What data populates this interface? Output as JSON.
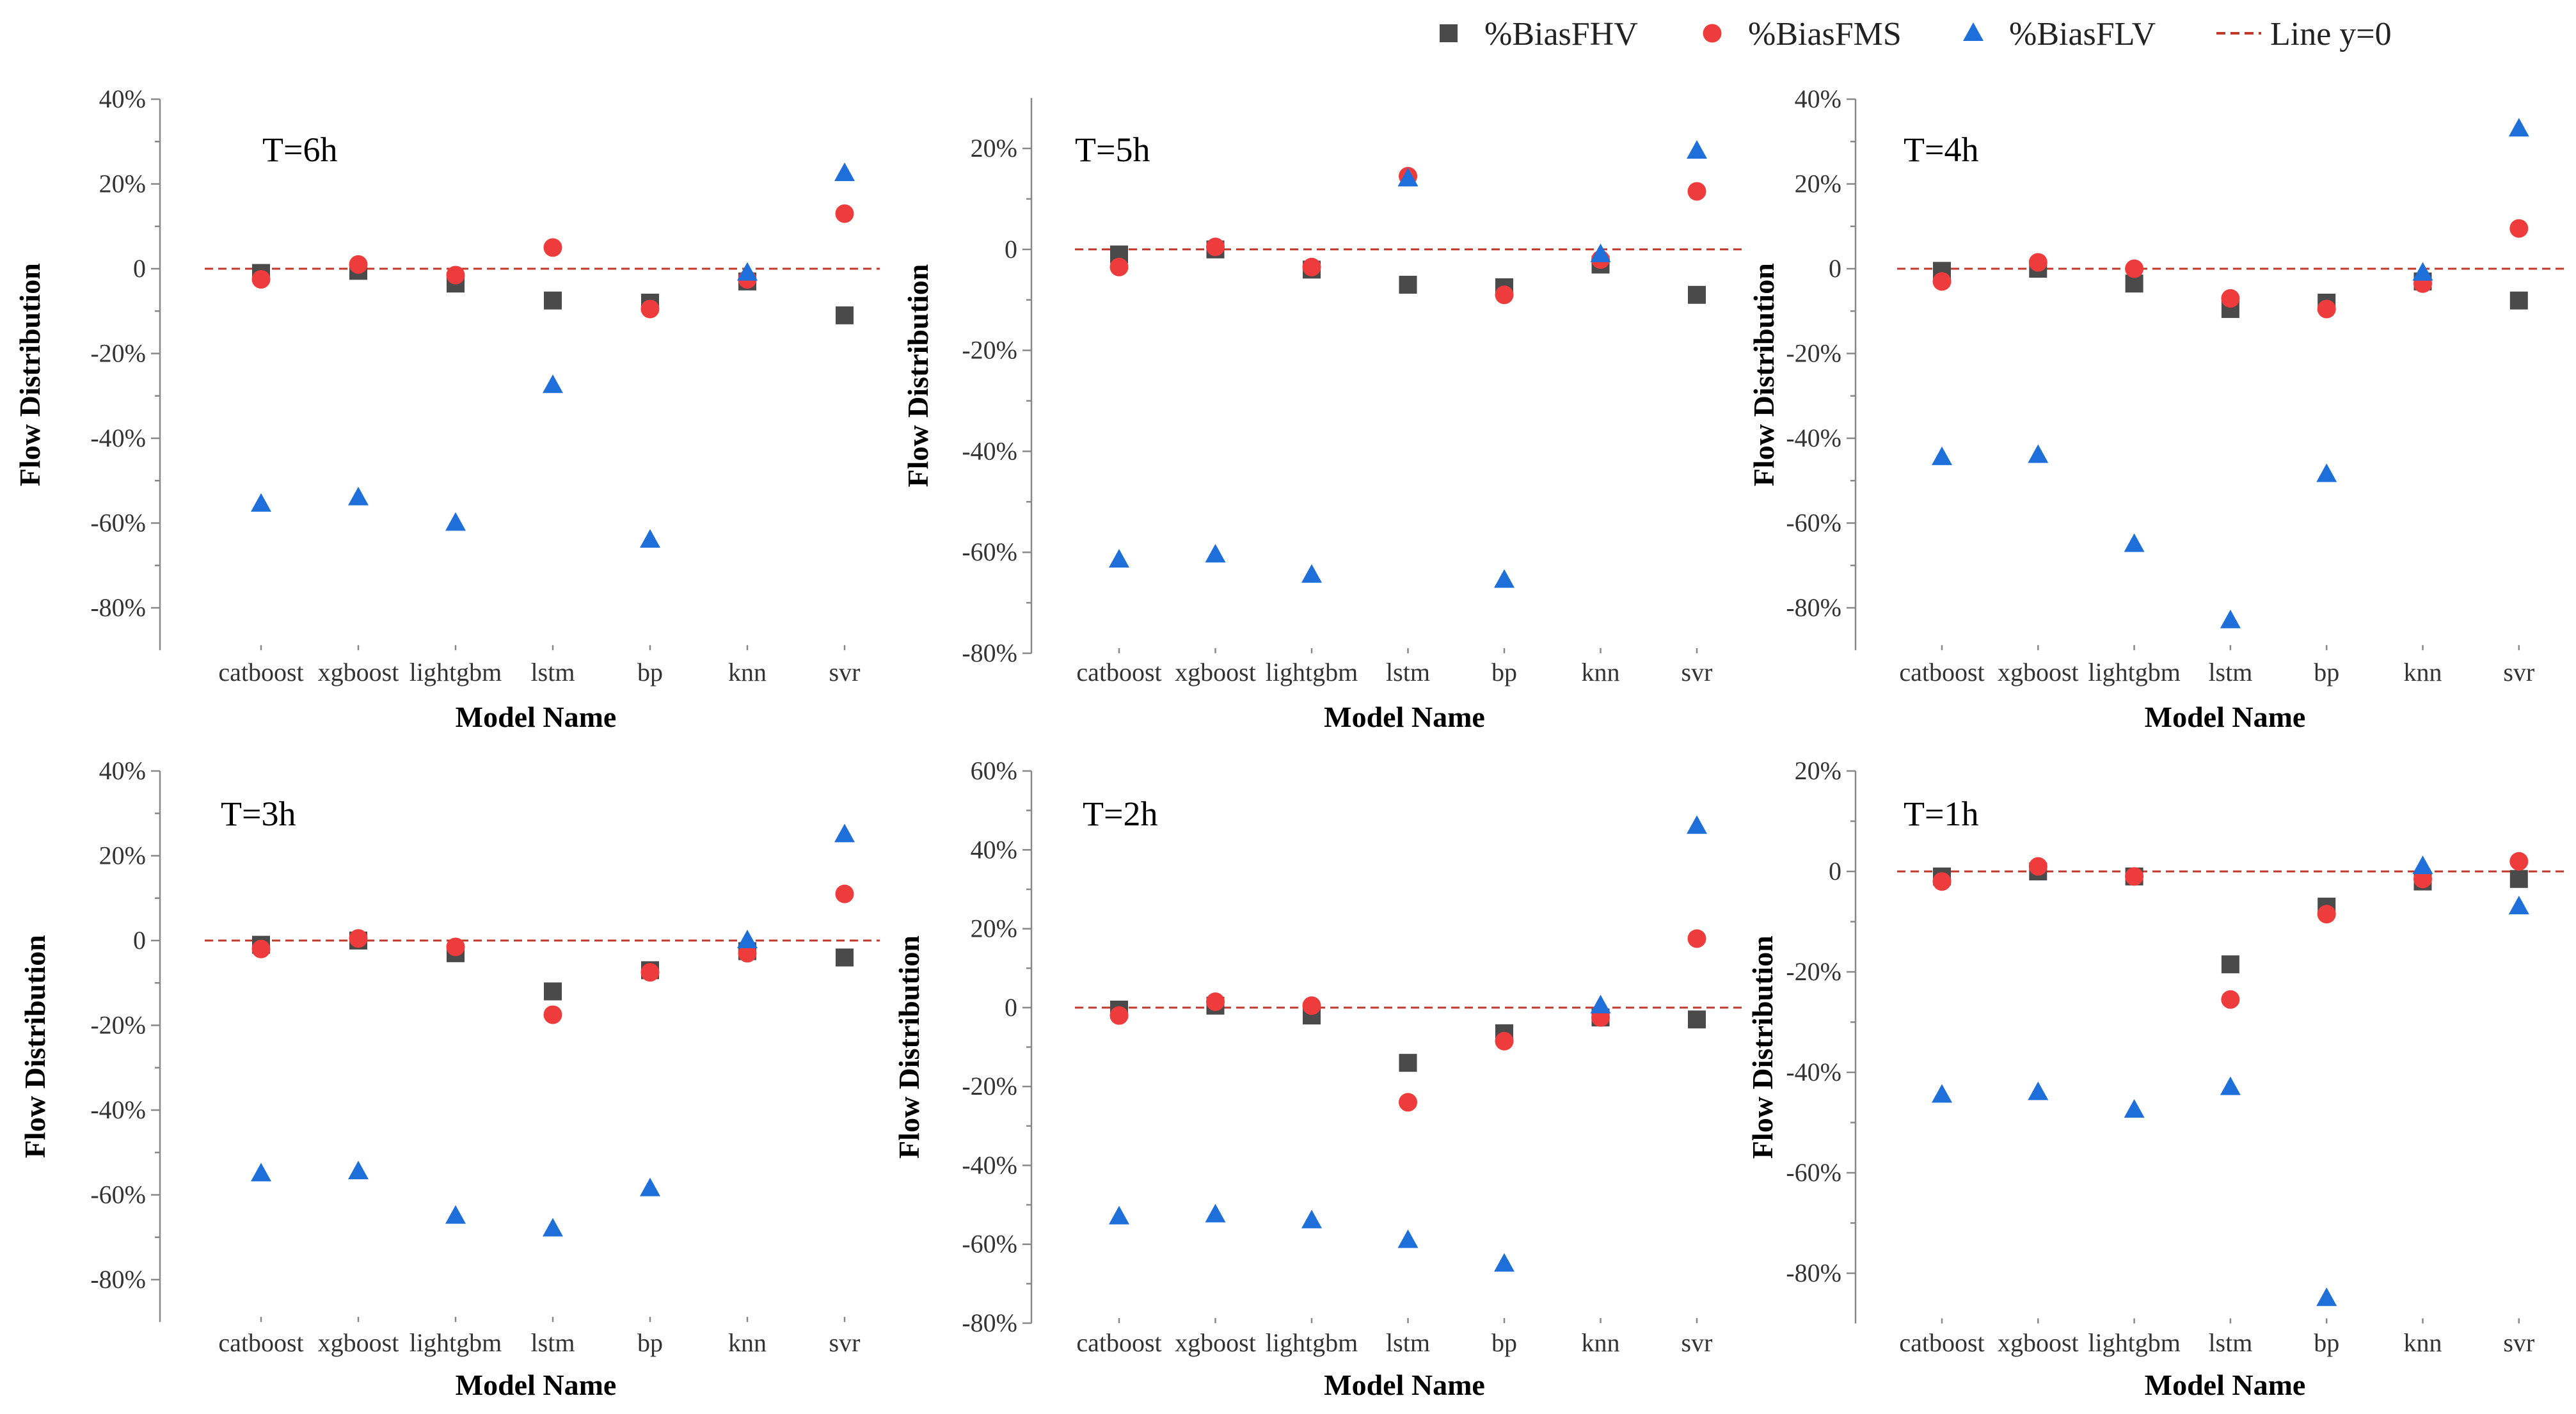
{
  "legend": {
    "items": [
      {
        "label": "%BiasFHV",
        "marker": "square",
        "color": "#4a4a4a"
      },
      {
        "label": "%BiasFMS",
        "marker": "circle",
        "color": "#ee3b3b"
      },
      {
        "label": "%BiasFLV",
        "marker": "triangle",
        "color": "#1f6fdb"
      },
      {
        "label": "Line y=0",
        "marker": "dashed-line",
        "color": "#c0392b"
      }
    ]
  },
  "chart_data": [
    {
      "type": "scatter",
      "panel_label": "T=6h",
      "xlabel": "Model Name",
      "ylabel": "Flow Distribution",
      "categories": [
        "catboost",
        "xgboost",
        "lightgbm",
        "lstm",
        "bp",
        "knn",
        "svr"
      ],
      "ylim": [
        -90,
        40
      ],
      "yticks": [
        40,
        20,
        0,
        -20,
        -40,
        -60,
        -80
      ],
      "ytick_labels": [
        "40%",
        "20%",
        "0",
        "-20%",
        "-40%",
        "-60%",
        "-80%"
      ],
      "reference_line": 0,
      "series": [
        {
          "name": "%BiasFHV",
          "values": [
            -1,
            -0.5,
            -3.5,
            -7.5,
            -8,
            -3,
            -11
          ]
        },
        {
          "name": "%BiasFMS",
          "values": [
            -2.5,
            1,
            -1.5,
            5,
            -9.5,
            -2.5,
            13
          ]
        },
        {
          "name": "%BiasFLV",
          "values": [
            -55.5,
            -54,
            -60,
            -27.5,
            -64,
            -1,
            22.5
          ]
        }
      ]
    },
    {
      "type": "scatter",
      "panel_label": "T=5h",
      "xlabel": "Model Name",
      "ylabel": "Flow Distribution",
      "categories": [
        "catboost",
        "xgboost",
        "lightgbm",
        "lstm",
        "bp",
        "knn",
        "svr"
      ],
      "ylim": [
        -80,
        30
      ],
      "yticks": [
        20,
        0,
        -20,
        -40,
        -60,
        -80
      ],
      "ytick_labels": [
        "20%",
        "0",
        "-20%",
        "-40%",
        "-60%",
        "-80%"
      ],
      "reference_line": 0,
      "series": [
        {
          "name": "%BiasFHV",
          "values": [
            -1,
            0,
            -4,
            -7,
            -7.5,
            -3,
            -9
          ]
        },
        {
          "name": "%BiasFMS",
          "values": [
            -3.5,
            0.5,
            -3.5,
            14.5,
            -9,
            -2,
            11.5
          ]
        },
        {
          "name": "%BiasFLV",
          "values": [
            -61.5,
            -60.5,
            -64.5,
            14,
            -65.5,
            -1,
            19.5
          ]
        }
      ]
    },
    {
      "type": "scatter",
      "panel_label": "T=4h",
      "xlabel": "Model Name",
      "ylabel": "Flow Distribution",
      "categories": [
        "catboost",
        "xgboost",
        "lightgbm",
        "lstm",
        "bp",
        "knn",
        "svr"
      ],
      "ylim": [
        -90,
        40
      ],
      "yticks": [
        40,
        20,
        0,
        -20,
        -40,
        -60,
        -80
      ],
      "ytick_labels": [
        "40%",
        "20%",
        "0",
        "-20%",
        "-40%",
        "-60%",
        "-80%"
      ],
      "reference_line": 0,
      "series": [
        {
          "name": "%BiasFHV",
          "values": [
            -0.5,
            0,
            -3.5,
            -9.5,
            -8,
            -3,
            -7.5
          ]
        },
        {
          "name": "%BiasFMS",
          "values": [
            -3,
            1.5,
            0,
            -7,
            -9.5,
            -3.5,
            9.5
          ]
        },
        {
          "name": "%BiasFLV",
          "values": [
            -44.5,
            -44,
            -65,
            -83,
            -48.5,
            -1,
            33
          ]
        }
      ]
    },
    {
      "type": "scatter",
      "panel_label": "T=3h",
      "xlabel": "Model Name",
      "ylabel": "Flow Distribution",
      "categories": [
        "catboost",
        "xgboost",
        "lightgbm",
        "lstm",
        "bp",
        "knn",
        "svr"
      ],
      "ylim": [
        -90,
        40
      ],
      "yticks": [
        40,
        20,
        0,
        -20,
        -40,
        -60,
        -80
      ],
      "ytick_labels": [
        "40%",
        "20%",
        "0",
        "-20%",
        "-40%",
        "-60%",
        "-80%"
      ],
      "reference_line": 0,
      "series": [
        {
          "name": "%BiasFHV",
          "values": [
            -1,
            0,
            -3,
            -12,
            -7,
            -2.5,
            -4
          ]
        },
        {
          "name": "%BiasFMS",
          "values": [
            -2,
            0.5,
            -1.5,
            -17.5,
            -7.5,
            -3,
            11
          ]
        },
        {
          "name": "%BiasFLV",
          "values": [
            -55,
            -54.5,
            -65,
            -68,
            -58.5,
            0,
            25
          ]
        }
      ]
    },
    {
      "type": "scatter",
      "panel_label": "T=2h",
      "xlabel": "Model Name",
      "ylabel": "Flow Distribution",
      "categories": [
        "catboost",
        "xgboost",
        "lightgbm",
        "lstm",
        "bp",
        "knn",
        "svr"
      ],
      "ylim": [
        -80,
        60
      ],
      "yticks": [
        60,
        40,
        20,
        0,
        -20,
        -40,
        -60,
        -80
      ],
      "ytick_labels": [
        "60%",
        "40%",
        "20%",
        "0",
        "-20%",
        "-40%",
        "-60%",
        "-80%"
      ],
      "reference_line": 0,
      "series": [
        {
          "name": "%BiasFHV",
          "values": [
            -0.5,
            0.5,
            -2,
            -14,
            -6.5,
            -2.5,
            -3
          ]
        },
        {
          "name": "%BiasFMS",
          "values": [
            -2,
            1.5,
            0.5,
            -24,
            -8.5,
            -2.5,
            17.5
          ]
        },
        {
          "name": "%BiasFLV",
          "values": [
            -53,
            -52.5,
            -54,
            -59,
            -65,
            0.5,
            46
          ]
        }
      ]
    },
    {
      "type": "scatter",
      "panel_label": "T=1h",
      "xlabel": "Model Name",
      "ylabel": "Flow Distribution",
      "categories": [
        "catboost",
        "xgboost",
        "lightgbm",
        "lstm",
        "bp",
        "knn",
        "svr"
      ],
      "ylim": [
        -90,
        20
      ],
      "yticks": [
        20,
        0,
        -20,
        -40,
        -60,
        -80
      ],
      "ytick_labels": [
        "20%",
        "0",
        "-20%",
        "-40%",
        "-60%",
        "-80%"
      ],
      "reference_line": 0,
      "series": [
        {
          "name": "%BiasFHV",
          "values": [
            -1,
            0,
            -1,
            -18.5,
            -7,
            -2,
            -1.5
          ]
        },
        {
          "name": "%BiasFMS",
          "values": [
            -2,
            1,
            -1,
            -25.5,
            -8.5,
            -1.5,
            2
          ]
        },
        {
          "name": "%BiasFLV",
          "values": [
            -44.5,
            -44,
            -47.5,
            -43,
            -85,
            1,
            -7
          ]
        }
      ]
    }
  ]
}
